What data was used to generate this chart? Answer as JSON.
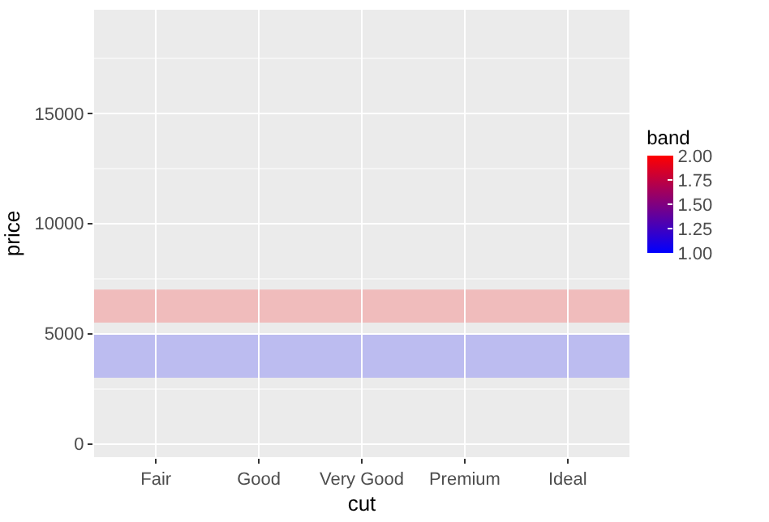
{
  "chart_data": {
    "type": "scatter",
    "xlabel": "cut",
    "ylabel": "price",
    "categories": [
      "Fair",
      "Good",
      "Very Good",
      "Premium",
      "Ideal"
    ],
    "ylim": [
      -600,
      19700
    ],
    "yticks": [
      0,
      5000,
      10000,
      15000
    ],
    "grid": true,
    "bands": [
      {
        "axis": "y",
        "from": 3000,
        "to": 5000,
        "color": "#bcbcf0"
      },
      {
        "axis": "y",
        "from": 5500,
        "to": 7000,
        "color": "#f0bcbc"
      }
    ],
    "clabel": "band",
    "clim": [
      1,
      2
    ],
    "cticks": [
      {
        "value": 1,
        "label": "1.00"
      },
      {
        "value": 1.25,
        "label": "1.25"
      },
      {
        "value": 1.5,
        "label": "1.50"
      },
      {
        "value": 1.75,
        "label": "1.75"
      },
      {
        "value": 2,
        "label": "2.00"
      }
    ]
  }
}
